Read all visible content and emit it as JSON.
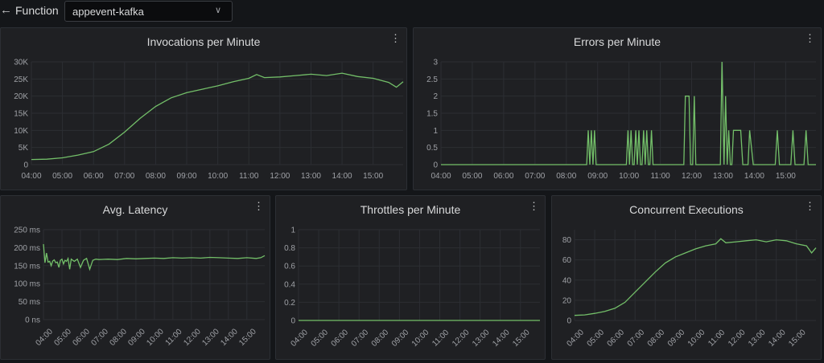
{
  "header": {
    "back_icon": "arrow-left-icon",
    "label": "Function",
    "function_select": {
      "value": "appevent-kafka",
      "icon": "chevron-down-icon"
    }
  },
  "panels": [
    {
      "title": "Invocations per Minute",
      "menu_icon": "vertical-ellipsis-icon",
      "chart_data": {
        "type": "line",
        "title": "Invocations per Minute",
        "y_ticks": [
          "0",
          "5K",
          "10K",
          "15K",
          "20K",
          "25K",
          "30K"
        ],
        "ylim": [
          0,
          30000
        ],
        "x_ticks": [
          "04:00",
          "05:00",
          "06:00",
          "07:00",
          "08:00",
          "09:00",
          "10:00",
          "11:00",
          "12:00",
          "13:00",
          "14:00",
          "15:00"
        ],
        "xlim": [
          "04:00",
          "15:58"
        ],
        "rotated_ticks": false,
        "grid": true,
        "series": [
          {
            "color": "#73bf69",
            "x": [
              "04:00",
              "04:30",
              "05:00",
              "05:30",
              "06:00",
              "06:30",
              "07:00",
              "07:30",
              "08:00",
              "08:30",
              "09:00",
              "09:30",
              "10:00",
              "10:30",
              "11:00",
              "11:15",
              "11:30",
              "12:00",
              "12:30",
              "13:00",
              "13:30",
              "14:00",
              "14:30",
              "15:00",
              "15:30",
              "15:45",
              "15:58"
            ],
            "y": [
              1500,
              1600,
              2000,
              2800,
              3800,
              6000,
              9500,
              13500,
              17000,
              19500,
              21000,
              22000,
              23000,
              24200,
              25200,
              26300,
              25400,
              25600,
              26000,
              26400,
              26000,
              26700,
              25700,
              25200,
              24000,
              22600,
              24200
            ]
          }
        ]
      }
    },
    {
      "title": "Errors per Minute",
      "menu_icon": "vertical-ellipsis-icon",
      "chart_data": {
        "type": "line",
        "title": "Errors per Minute",
        "y_ticks": [
          "0",
          "0.5",
          "1",
          "1.5",
          "2",
          "2.5",
          "3"
        ],
        "ylim": [
          0,
          3
        ],
        "x_ticks": [
          "04:00",
          "05:00",
          "06:00",
          "07:00",
          "08:00",
          "09:00",
          "10:00",
          "11:00",
          "12:00",
          "13:00",
          "14:00",
          "15:00"
        ],
        "xlim": [
          "04:00",
          "15:58"
        ],
        "rotated_ticks": false,
        "grid": true,
        "series": [
          {
            "color": "#73bf69",
            "x": [
              "04:00",
              "08:39",
              "08:42",
              "08:45",
              "08:48",
              "08:51",
              "08:54",
              "08:57",
              "09:55",
              "09:58",
              "10:01",
              "10:04",
              "10:07",
              "10:10",
              "10:13",
              "10:16",
              "10:19",
              "10:22",
              "10:25",
              "10:28",
              "10:31",
              "10:34",
              "10:37",
              "10:40",
              "10:43",
              "10:46",
              "10:49",
              "11:45",
              "11:48",
              "11:55",
              "11:58",
              "12:02",
              "12:05",
              "12:08",
              "12:11",
              "12:55",
              "12:58",
              "13:02",
              "13:05",
              "13:08",
              "13:11",
              "13:14",
              "13:17",
              "13:20",
              "13:24",
              "13:28",
              "13:31",
              "13:34",
              "13:38",
              "13:42",
              "13:48",
              "13:51",
              "13:58",
              "14:02",
              "14:40",
              "14:44",
              "14:48",
              "15:10",
              "15:14",
              "15:18",
              "15:35",
              "15:39",
              "15:43",
              "15:58"
            ],
            "y": [
              0,
              0,
              1,
              0,
              1,
              0,
              1,
              0,
              0,
              1,
              0,
              1,
              0,
              0,
              1,
              0,
              1,
              0,
              0,
              1,
              0,
              1,
              0,
              0,
              1,
              0,
              0,
              0,
              2,
              2,
              0,
              0,
              2,
              0,
              0,
              0,
              3,
              0,
              2,
              0,
              1,
              0,
              0,
              1,
              1,
              1,
              1,
              1,
              0,
              0,
              0,
              1,
              0,
              0,
              0,
              1,
              0,
              0,
              1,
              0,
              0,
              1,
              0,
              0
            ]
          }
        ]
      }
    },
    {
      "title": "Avg. Latency",
      "menu_icon": "vertical-ellipsis-icon",
      "chart_data": {
        "type": "line",
        "title": "Avg. Latency",
        "y_ticks": [
          "0 ns",
          "50 ms",
          "100 ms",
          "150 ms",
          "200 ms",
          "250 ms"
        ],
        "ylim": [
          0,
          250
        ],
        "x_ticks": [
          "04:00",
          "05:00",
          "06:00",
          "07:00",
          "08:00",
          "09:00",
          "10:00",
          "11:00",
          "12:00",
          "13:00",
          "14:00",
          "15:00"
        ],
        "xlim": [
          "04:00",
          "15:58"
        ],
        "rotated_ticks": true,
        "grid": true,
        "series": [
          {
            "color": "#73bf69",
            "x": [
              "04:00",
              "04:05",
              "04:10",
              "04:15",
              "04:20",
              "04:25",
              "04:30",
              "04:35",
              "04:40",
              "04:45",
              "04:50",
              "04:55",
              "05:00",
              "05:05",
              "05:10",
              "05:15",
              "05:20",
              "05:25",
              "05:30",
              "05:40",
              "05:50",
              "06:00",
              "06:10",
              "06:20",
              "06:30",
              "06:40",
              "06:50",
              "07:00",
              "07:30",
              "08:00",
              "08:30",
              "09:00",
              "09:30",
              "10:00",
              "10:30",
              "11:00",
              "11:30",
              "12:00",
              "12:30",
              "13:00",
              "13:30",
              "14:00",
              "14:30",
              "15:00",
              "15:30",
              "15:45",
              "15:58"
            ],
            "y": [
              210,
              158,
              185,
              160,
              162,
              150,
              163,
              166,
              158,
              160,
              145,
              165,
              168,
              155,
              165,
              162,
              170,
              140,
              168,
              162,
              168,
              145,
              165,
              170,
              140,
              165,
              168,
              167,
              168,
              167,
              170,
              169,
              170,
              171,
              170,
              172,
              171,
              172,
              171,
              173,
              172,
              171,
              170,
              172,
              170,
              172,
              178
            ]
          }
        ]
      }
    },
    {
      "title": "Throttles per Minute",
      "menu_icon": "vertical-ellipsis-icon",
      "chart_data": {
        "type": "line",
        "title": "Throttles per Minute",
        "y_ticks": [
          "0",
          "0.2",
          "0.4",
          "0.6",
          "0.8",
          "1"
        ],
        "ylim": [
          0,
          1
        ],
        "x_ticks": [
          "04:00",
          "05:00",
          "06:00",
          "07:00",
          "08:00",
          "09:00",
          "10:00",
          "11:00",
          "12:00",
          "13:00",
          "14:00",
          "15:00"
        ],
        "xlim": [
          "04:00",
          "15:58"
        ],
        "rotated_ticks": true,
        "grid": true,
        "series": [
          {
            "color": "#73bf69",
            "x": [
              "04:00",
              "15:58"
            ],
            "y": [
              0,
              0
            ]
          }
        ]
      }
    },
    {
      "title": "Concurrent Executions",
      "menu_icon": "vertical-ellipsis-icon",
      "chart_data": {
        "type": "line",
        "title": "Concurrent Executions",
        "y_ticks": [
          "0",
          "20",
          "40",
          "60",
          "80"
        ],
        "ylim": [
          0,
          90
        ],
        "x_ticks": [
          "04:00",
          "05:00",
          "06:00",
          "07:00",
          "08:00",
          "09:00",
          "10:00",
          "11:00",
          "12:00",
          "13:00",
          "14:00",
          "15:00"
        ],
        "xlim": [
          "04:00",
          "15:58"
        ],
        "rotated_ticks": true,
        "grid": true,
        "series": [
          {
            "color": "#73bf69",
            "x": [
              "04:00",
              "04:30",
              "05:00",
              "05:30",
              "06:00",
              "06:30",
              "07:00",
              "07:30",
              "08:00",
              "08:30",
              "09:00",
              "09:30",
              "10:00",
              "10:30",
              "11:00",
              "11:15",
              "11:30",
              "12:00",
              "12:30",
              "13:00",
              "13:30",
              "14:00",
              "14:30",
              "15:00",
              "15:30",
              "15:45",
              "15:58"
            ],
            "y": [
              5,
              5.5,
              7,
              9,
              12,
              18,
              28,
              38,
              48,
              57,
              63,
              67,
              71,
              74,
              76,
              81,
              77,
              78,
              79,
              80,
              78,
              80,
              79,
              76,
              74,
              67,
              72
            ]
          }
        ]
      }
    }
  ]
}
